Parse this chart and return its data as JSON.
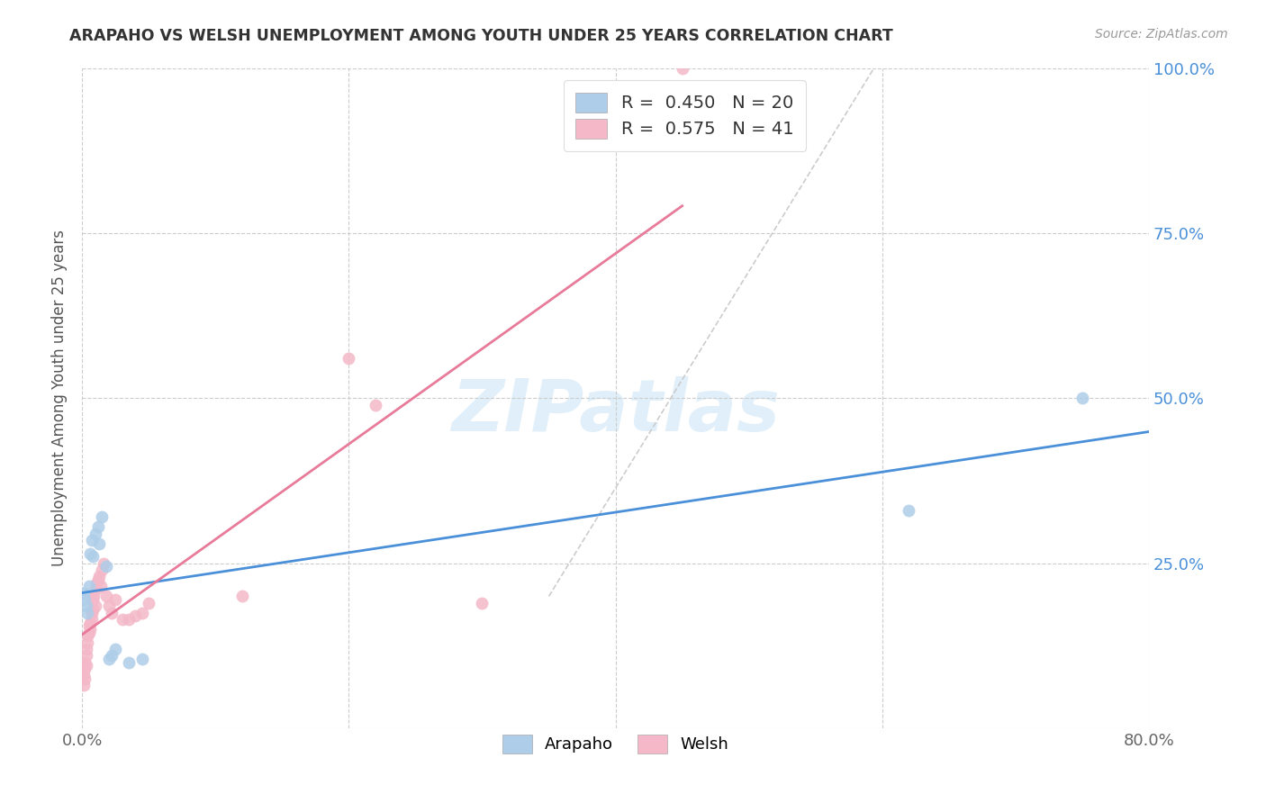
{
  "title": "ARAPAHO VS WELSH UNEMPLOYMENT AMONG YOUTH UNDER 25 YEARS CORRELATION CHART",
  "source": "Source: ZipAtlas.com",
  "ylabel": "Unemployment Among Youth under 25 years",
  "arapaho_R": 0.45,
  "arapaho_N": 20,
  "welsh_R": 0.575,
  "welsh_N": 41,
  "arapaho_color": "#aecde8",
  "welsh_color": "#f4b8c8",
  "arapaho_line_color": "#4a90d9",
  "welsh_line_color": "#e87a9a",
  "background_color": "#ffffff",
  "watermark": "ZIPatlas",
  "arapaho_x": [
    0.001,
    0.002,
    0.003,
    0.004,
    0.005,
    0.006,
    0.007,
    0.008,
    0.01,
    0.012,
    0.013,
    0.015,
    0.018,
    0.02,
    0.022,
    0.025,
    0.035,
    0.045,
    0.62,
    0.75
  ],
  "arapaho_y": [
    0.205,
    0.195,
    0.185,
    0.175,
    0.215,
    0.265,
    0.285,
    0.26,
    0.295,
    0.305,
    0.28,
    0.32,
    0.245,
    0.105,
    0.11,
    0.12,
    0.1,
    0.105,
    0.33,
    0.5
  ],
  "welsh_x": [
    0.001,
    0.001,
    0.002,
    0.002,
    0.002,
    0.003,
    0.003,
    0.003,
    0.004,
    0.004,
    0.005,
    0.005,
    0.006,
    0.006,
    0.007,
    0.007,
    0.008,
    0.008,
    0.009,
    0.01,
    0.01,
    0.011,
    0.012,
    0.013,
    0.014,
    0.015,
    0.016,
    0.018,
    0.02,
    0.022,
    0.025,
    0.03,
    0.035,
    0.04,
    0.045,
    0.05,
    0.12,
    0.2,
    0.22,
    0.3,
    0.45
  ],
  "welsh_y": [
    0.065,
    0.08,
    0.09,
    0.1,
    0.075,
    0.11,
    0.12,
    0.095,
    0.13,
    0.14,
    0.145,
    0.155,
    0.16,
    0.15,
    0.165,
    0.175,
    0.18,
    0.195,
    0.2,
    0.21,
    0.185,
    0.22,
    0.225,
    0.23,
    0.215,
    0.24,
    0.25,
    0.2,
    0.185,
    0.175,
    0.195,
    0.165,
    0.165,
    0.17,
    0.175,
    0.19,
    0.2,
    0.56,
    0.49,
    0.19,
    1.0
  ],
  "xlim": [
    0.0,
    0.8
  ],
  "ylim": [
    0.0,
    1.0
  ],
  "xtick_positions": [
    0.0,
    0.2,
    0.4,
    0.6,
    0.8
  ],
  "ytick_positions": [
    0.0,
    0.25,
    0.5,
    0.75,
    1.0
  ],
  "right_yticklabels": [
    "",
    "25.0%",
    "50.0%",
    "75.0%",
    "100.0%"
  ],
  "xticklabels": [
    "0.0%",
    "",
    "",
    "",
    "80.0%"
  ]
}
